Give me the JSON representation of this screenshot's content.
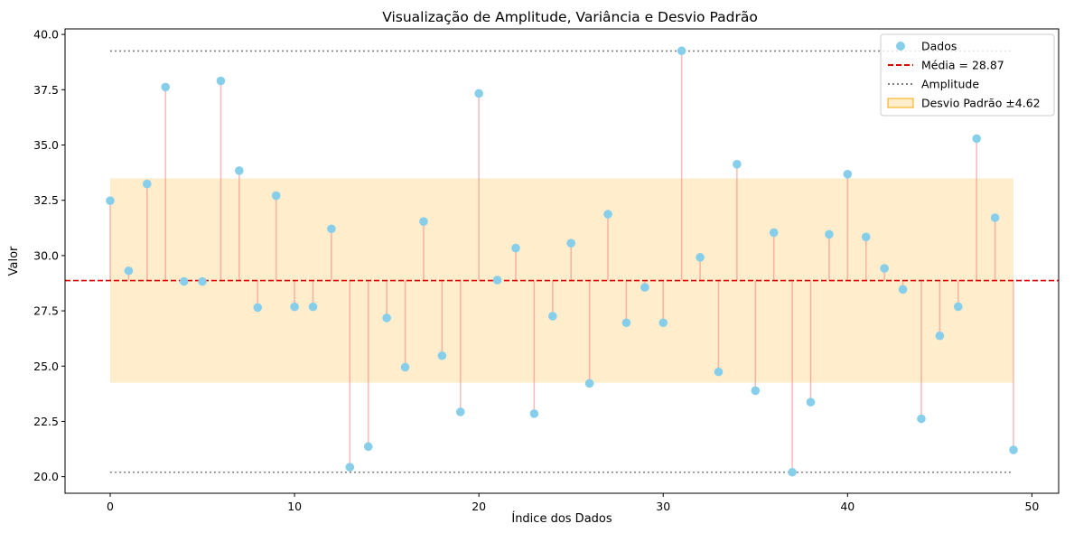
{
  "chart_data": {
    "type": "scatter",
    "title": "Visualização de Amplitude, Variância e Desvio Padrão",
    "xlabel": "Índice dos Dados",
    "ylabel": "Valor",
    "xlim": [
      -2.45,
      51.45
    ],
    "ylim": [
      19.25,
      40.25
    ],
    "x_ticks": [
      0,
      10,
      20,
      30,
      40,
      50
    ],
    "y_ticks": [
      20.0,
      22.5,
      25.0,
      27.5,
      30.0,
      32.5,
      35.0,
      37.5,
      40.0
    ],
    "x_tick_labels": [
      "0",
      "10",
      "20",
      "30",
      "40",
      "50"
    ],
    "y_tick_labels": [
      "20.0",
      "22.5",
      "25.0",
      "27.5",
      "30.0",
      "32.5",
      "35.0",
      "37.5",
      "40.0"
    ],
    "mean": 28.87,
    "std": 4.62,
    "min": 20.2,
    "max": 39.25,
    "series": [
      {
        "name": "Dados",
        "x": [
          0,
          1,
          2,
          3,
          4,
          5,
          6,
          7,
          8,
          9,
          10,
          11,
          12,
          13,
          14,
          15,
          16,
          17,
          18,
          19,
          20,
          21,
          22,
          23,
          24,
          25,
          26,
          27,
          28,
          29,
          30,
          31,
          32,
          33,
          34,
          35,
          36,
          37,
          38,
          39,
          40,
          41,
          42,
          43,
          44,
          45,
          46,
          47,
          48,
          49
        ],
        "values": [
          32.48,
          29.31,
          33.24,
          37.62,
          28.83,
          28.83,
          37.9,
          33.84,
          27.65,
          32.71,
          27.68,
          27.68,
          31.21,
          20.43,
          21.36,
          27.18,
          24.95,
          31.54,
          25.47,
          22.93,
          37.33,
          28.89,
          30.34,
          22.85,
          27.26,
          30.56,
          24.22,
          31.87,
          26.96,
          28.56,
          26.96,
          39.26,
          29.92,
          24.74,
          34.13,
          23.89,
          31.04,
          20.2,
          23.37,
          30.96,
          33.68,
          30.84,
          29.42,
          28.47,
          22.62,
          26.37,
          27.69,
          35.29,
          31.71,
          21.21
        ]
      }
    ],
    "legend": {
      "placement": "top-right",
      "entries": [
        {
          "label": "Dados"
        },
        {
          "label": "Média = 28.87"
        },
        {
          "label": "Amplitude"
        },
        {
          "label": "Desvio Padrão ±4.62"
        }
      ]
    },
    "colors": {
      "points": "#87CEEB",
      "stems": "#F08080",
      "mean_line": "#E00000",
      "amplitude_line": "#808080",
      "std_band": "#FFA500"
    },
    "grid": false
  }
}
